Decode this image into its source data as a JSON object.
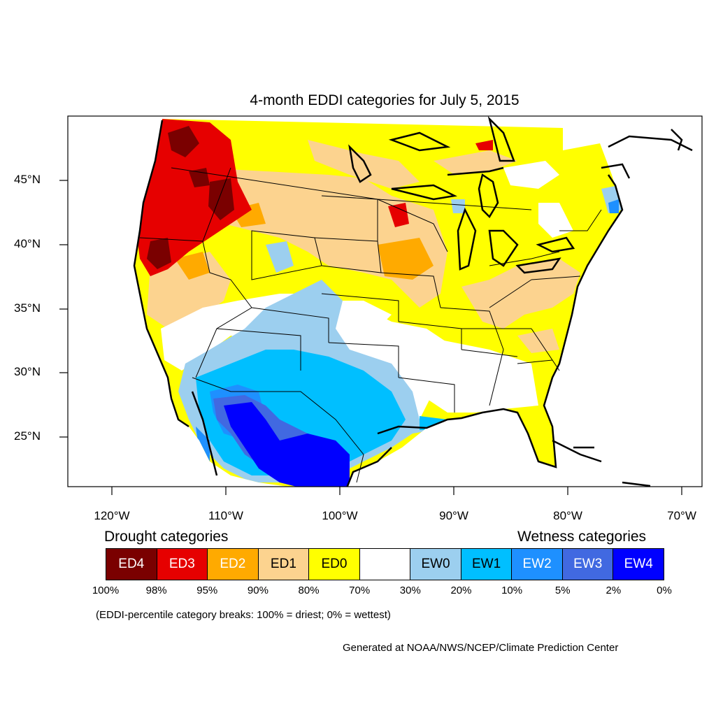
{
  "title": "4-month EDDI categories for July 5, 2015",
  "lat_labels": [
    "45°N",
    "40°N",
    "35°N",
    "30°N",
    "25°N"
  ],
  "lon_labels": [
    "120°W",
    "110°W",
    "100°W",
    "90°W",
    "80°W",
    "70°W"
  ],
  "legend": {
    "drought_heading": "Drought categories",
    "wetness_heading": "Wetness categories",
    "categories": [
      {
        "label": "ED4",
        "color": "#7a0000",
        "text_color": "#ffffff"
      },
      {
        "label": "ED3",
        "color": "#e60000",
        "text_color": "#ffffff"
      },
      {
        "label": "ED2",
        "color": "#ffaa00",
        "text_color": "#ffffff"
      },
      {
        "label": "ED1",
        "color": "#fcd38f",
        "text_color": "#000000"
      },
      {
        "label": "ED0",
        "color": "#ffff00",
        "text_color": "#000000"
      },
      {
        "label": "",
        "color": "#ffffff",
        "text_color": "#000000"
      },
      {
        "label": "EW0",
        "color": "#9ccfef",
        "text_color": "#000000"
      },
      {
        "label": "EW1",
        "color": "#00bfff",
        "text_color": "#000000"
      },
      {
        "label": "EW2",
        "color": "#1e90ff",
        "text_color": "#ffffff"
      },
      {
        "label": "EW3",
        "color": "#4169e1",
        "text_color": "#ffffff"
      },
      {
        "label": "EW4",
        "color": "#0000ff",
        "text_color": "#ffffff"
      }
    ],
    "breaks": [
      "100%",
      "98%",
      "95%",
      "90%",
      "80%",
      "70%",
      "30%",
      "20%",
      "10%",
      "5%",
      "2%",
      "0%"
    ]
  },
  "footnote": "(EDDI-percentile category breaks: 100% = driest; 0% = wettest)",
  "credit": "Generated at NOAA/NWS/NCEP/Climate Prediction Center"
}
